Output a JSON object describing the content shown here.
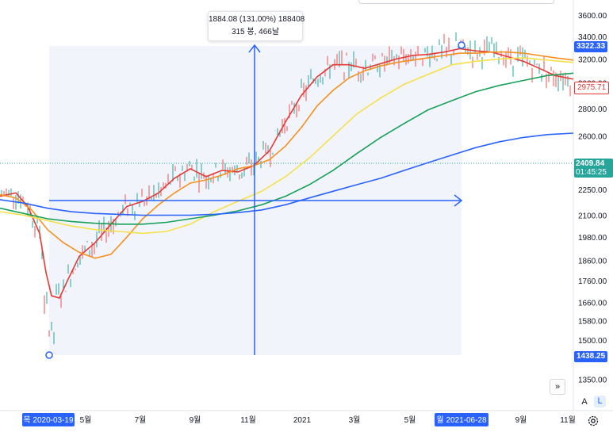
{
  "chart_data": {
    "type": "line",
    "title": "",
    "xlabel": "",
    "ylabel": "",
    "y_axis_ticks": [
      "3600.00",
      "3400.00",
      "3200.00",
      "3000.00",
      "2800.00",
      "2600.00",
      "2250.00",
      "2100.00",
      "1980.00",
      "1860.00",
      "1760.00",
      "1660.00",
      "1580.00",
      "1500.00",
      "1350.00"
    ],
    "x_axis_ticks": [
      "5월",
      "7월",
      "9월",
      "11월",
      "2021",
      "3월",
      "5월",
      "9월",
      "11월"
    ],
    "x_axis_selected": [
      "목 2020-03-19",
      "월 2021-06-28"
    ],
    "price_labels": {
      "high": "3322.33",
      "current": "2975.71",
      "crosshair": "2409.84",
      "countdown": "01:45:25",
      "low": "1438.25"
    },
    "measure_tooltip": {
      "line1": "1884.08 (131.00%) 188408",
      "line2": "315 봉, 466날"
    },
    "series": [
      {
        "color": "#e53935",
        "points": [
          [
            0,
            2210
          ],
          [
            20,
            2230
          ],
          [
            35,
            2150
          ],
          [
            50,
            2000
          ],
          [
            58,
            1800
          ],
          [
            65,
            1690
          ],
          [
            75,
            1680
          ],
          [
            85,
            1760
          ],
          [
            100,
            1880
          ],
          [
            120,
            1950
          ],
          [
            140,
            2050
          ],
          [
            160,
            2150
          ],
          [
            180,
            2180
          ],
          [
            200,
            2230
          ],
          [
            220,
            2320
          ],
          [
            240,
            2380
          ],
          [
            260,
            2330
          ],
          [
            280,
            2370
          ],
          [
            300,
            2360
          ],
          [
            320,
            2400
          ],
          [
            340,
            2500
          ],
          [
            360,
            2700
          ],
          [
            380,
            2900
          ],
          [
            400,
            3050
          ],
          [
            420,
            3150
          ],
          [
            440,
            3150
          ],
          [
            460,
            3120
          ],
          [
            480,
            3160
          ],
          [
            500,
            3200
          ],
          [
            520,
            3230
          ],
          [
            540,
            3240
          ],
          [
            560,
            3260
          ],
          [
            580,
            3290
          ],
          [
            600,
            3270
          ],
          [
            620,
            3260
          ],
          [
            640,
            3220
          ],
          [
            660,
            3180
          ],
          [
            680,
            3120
          ],
          [
            700,
            3060
          ],
          [
            723,
            3030
          ]
        ]
      },
      {
        "color": "#f5901e",
        "points": [
          [
            0,
            2220
          ],
          [
            20,
            2200
          ],
          [
            40,
            2130
          ],
          [
            60,
            2020
          ],
          [
            80,
            1950
          ],
          [
            100,
            1900
          ],
          [
            120,
            1870
          ],
          [
            140,
            1890
          ],
          [
            160,
            1980
          ],
          [
            180,
            2080
          ],
          [
            200,
            2160
          ],
          [
            220,
            2230
          ],
          [
            240,
            2290
          ],
          [
            260,
            2310
          ],
          [
            280,
            2340
          ],
          [
            300,
            2380
          ],
          [
            320,
            2400
          ],
          [
            340,
            2440
          ],
          [
            360,
            2530
          ],
          [
            380,
            2660
          ],
          [
            400,
            2820
          ],
          [
            420,
            2940
          ],
          [
            440,
            3040
          ],
          [
            460,
            3100
          ],
          [
            480,
            3140
          ],
          [
            500,
            3170
          ],
          [
            520,
            3190
          ],
          [
            540,
            3210
          ],
          [
            560,
            3230
          ],
          [
            580,
            3250
          ],
          [
            600,
            3250
          ],
          [
            620,
            3260
          ],
          [
            640,
            3260
          ],
          [
            660,
            3250
          ],
          [
            680,
            3230
          ],
          [
            700,
            3210
          ],
          [
            723,
            3190
          ]
        ]
      },
      {
        "color": "#f5e04a",
        "points": [
          [
            0,
            2120
          ],
          [
            30,
            2100
          ],
          [
            60,
            2070
          ],
          [
            90,
            2040
          ],
          [
            120,
            2020
          ],
          [
            150,
            2010
          ],
          [
            180,
            2000
          ],
          [
            210,
            2010
          ],
          [
            240,
            2050
          ],
          [
            270,
            2120
          ],
          [
            300,
            2180
          ],
          [
            330,
            2240
          ],
          [
            360,
            2330
          ],
          [
            390,
            2450
          ],
          [
            420,
            2600
          ],
          [
            450,
            2760
          ],
          [
            480,
            2880
          ],
          [
            510,
            2990
          ],
          [
            540,
            3070
          ],
          [
            570,
            3150
          ],
          [
            600,
            3180
          ],
          [
            630,
            3200
          ],
          [
            660,
            3210
          ],
          [
            690,
            3190
          ],
          [
            723,
            3170
          ]
        ]
      },
      {
        "color": "#18a058",
        "points": [
          [
            0,
            2140
          ],
          [
            30,
            2110
          ],
          [
            60,
            2080
          ],
          [
            90,
            2065
          ],
          [
            120,
            2055
          ],
          [
            150,
            2050
          ],
          [
            180,
            2050
          ],
          [
            210,
            2060
          ],
          [
            240,
            2080
          ],
          [
            270,
            2100
          ],
          [
            300,
            2125
          ],
          [
            330,
            2160
          ],
          [
            360,
            2210
          ],
          [
            390,
            2280
          ],
          [
            420,
            2370
          ],
          [
            450,
            2480
          ],
          [
            480,
            2590
          ],
          [
            510,
            2690
          ],
          [
            540,
            2790
          ],
          [
            570,
            2860
          ],
          [
            600,
            2930
          ],
          [
            630,
            2980
          ],
          [
            660,
            3020
          ],
          [
            690,
            3060
          ],
          [
            723,
            3080
          ]
        ]
      },
      {
        "color": "#2962ff",
        "points": [
          [
            0,
            2190
          ],
          [
            30,
            2170
          ],
          [
            60,
            2140
          ],
          [
            90,
            2120
          ],
          [
            120,
            2110
          ],
          [
            150,
            2105
          ],
          [
            180,
            2100
          ],
          [
            210,
            2100
          ],
          [
            240,
            2100
          ],
          [
            270,
            2105
          ],
          [
            300,
            2115
          ],
          [
            330,
            2130
          ],
          [
            360,
            2160
          ],
          [
            390,
            2200
          ],
          [
            420,
            2240
          ],
          [
            450,
            2280
          ],
          [
            480,
            2320
          ],
          [
            510,
            2370
          ],
          [
            540,
            2420
          ],
          [
            570,
            2470
          ],
          [
            600,
            2520
          ],
          [
            630,
            2560
          ],
          [
            660,
            2590
          ],
          [
            690,
            2610
          ],
          [
            723,
            2620
          ]
        ]
      }
    ]
  },
  "ui": {
    "expand_icon": "double-chevron-right-icon",
    "auto_label": "A",
    "log_label": "L",
    "settings_icon": "gear-icon"
  }
}
